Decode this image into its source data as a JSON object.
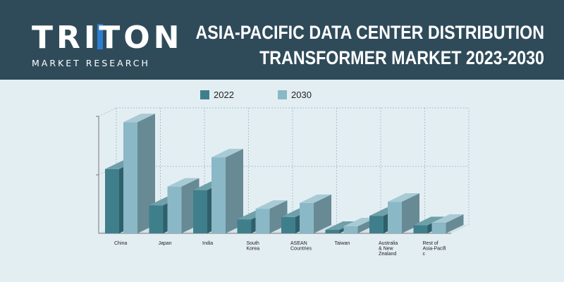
{
  "brand": {
    "name": "TRITON",
    "tagline": "MARKET RESEARCH"
  },
  "title_lines": [
    "ASIA-PACIFIC DATA CENTER DISTRIBUTION",
    "TRANSFORMER MARKET 2023-2030"
  ],
  "colors": {
    "header_bg": "#2f4b5a",
    "page_bg": "#e3eef3",
    "series_2022": "#3f7f8c",
    "series_2030": "#8ab8c6",
    "logo_accent": "#2a7fd0"
  },
  "chart_data": {
    "type": "bar",
    "title": "ASIA-PACIFIC DATA CENTER DISTRIBUTION TRANSFORMER MARKET 2023-2030",
    "categories": [
      [
        "China"
      ],
      [
        "Japan"
      ],
      [
        "India"
      ],
      [
        "South",
        "Korea"
      ],
      [
        "ASEAN",
        "Countries"
      ],
      [
        "Taiwan"
      ],
      [
        "Australia",
        "& New",
        "Zealand"
      ],
      [
        "Rest of",
        "Asia-Pacifi",
        "c"
      ]
    ],
    "series": [
      {
        "name": "2022",
        "color": "#3f7f8c",
        "values": [
          55,
          24,
          37,
          12,
          14,
          3,
          15,
          7
        ]
      },
      {
        "name": "2030",
        "color": "#8ab8c6",
        "values": [
          95,
          40,
          65,
          21,
          26,
          6,
          27,
          9
        ]
      }
    ],
    "ylim": [
      0,
      100
    ],
    "grid": true,
    "legend": "top-center",
    "xlabel": "",
    "ylabel": ""
  }
}
